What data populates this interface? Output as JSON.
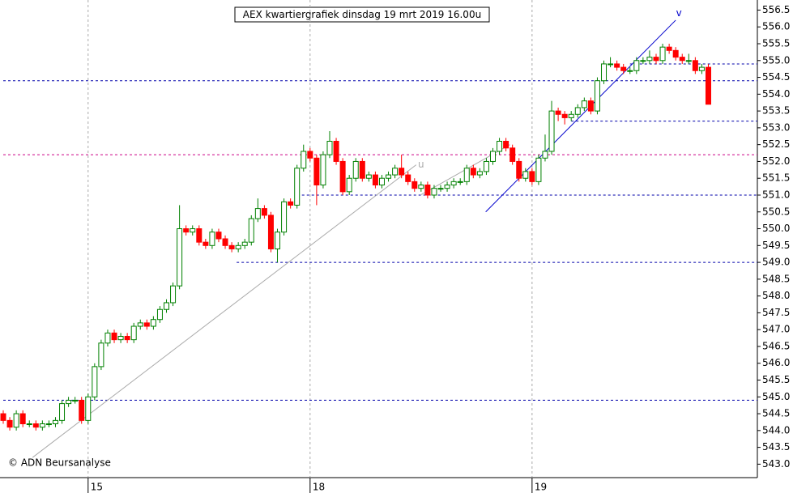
{
  "chart_data": {
    "type": "candlestick",
    "title": "AEX kwartiergrafiek dinsdag 19 mrt 2019 16.00u",
    "footer": "© ADN Beursanalyse",
    "categories": [
      null,
      null,
      null,
      null,
      null,
      null,
      null,
      null,
      null,
      null,
      null,
      null,
      null,
      "15",
      null,
      null,
      null,
      null,
      null,
      null,
      null,
      null,
      null,
      null,
      null,
      null,
      null,
      null,
      null,
      null,
      null,
      null,
      null,
      null,
      null,
      null,
      null,
      null,
      null,
      null,
      null,
      null,
      null,
      null,
      null,
      null,
      null,
      "18",
      null,
      null,
      null,
      null,
      null,
      null,
      null,
      null,
      null,
      null,
      null,
      null,
      null,
      null,
      null,
      null,
      null,
      null,
      null,
      null,
      null,
      null,
      null,
      null,
      null,
      null,
      null,
      null,
      null,
      null,
      null,
      null,
      null,
      "19",
      null,
      null,
      null,
      null,
      null,
      null,
      null,
      null,
      null,
      null,
      null,
      null,
      null,
      null,
      null,
      null,
      null,
      null,
      null,
      null,
      null,
      null,
      null,
      null,
      null,
      null,
      null
    ],
    "open": [
      544.5,
      544.3,
      544.1,
      544.5,
      544.2,
      544.2,
      544.1,
      544.2,
      544.2,
      544.3,
      544.8,
      544.9,
      544.9,
      544.3,
      545.0,
      545.9,
      546.6,
      546.9,
      546.7,
      546.8,
      546.7,
      547.1,
      547.2,
      547.1,
      547.3,
      547.6,
      547.8,
      548.3,
      550.0,
      549.9,
      550.0,
      549.6,
      549.5,
      549.9,
      549.7,
      549.5,
      549.4,
      549.5,
      549.6,
      550.3,
      550.6,
      550.4,
      549.4,
      549.9,
      550.8,
      550.7,
      551.8,
      552.3,
      552.1,
      551.3,
      552.2,
      552.6,
      552.0,
      551.1,
      551.5,
      552.0,
      551.5,
      551.6,
      551.3,
      551.5,
      551.6,
      551.8,
      551.6,
      551.4,
      551.2,
      551.3,
      551.0,
      551.2,
      551.2,
      551.3,
      551.4,
      551.4,
      551.8,
      551.6,
      551.7,
      552.0,
      552.3,
      552.6,
      552.4,
      552.0,
      551.5,
      551.7,
      551.4,
      552.1,
      552.3,
      553.5,
      553.4,
      553.3,
      553.4,
      553.6,
      553.8,
      553.5,
      554.4,
      554.9,
      554.9,
      554.8,
      554.7,
      554.7,
      555.0,
      555.0,
      555.1,
      555.0,
      555.4,
      555.3,
      555.1,
      555.0,
      555.0,
      554.7,
      554.8
    ],
    "high": [
      544.6,
      544.4,
      544.6,
      544.6,
      544.3,
      544.3,
      544.3,
      544.3,
      544.4,
      544.9,
      545.0,
      545.0,
      545.0,
      545.1,
      546.0,
      546.7,
      547.0,
      547.0,
      546.9,
      546.9,
      547.2,
      547.3,
      547.3,
      547.4,
      547.7,
      547.9,
      548.4,
      550.7,
      550.1,
      550.1,
      550.1,
      549.7,
      550.0,
      550.0,
      549.8,
      549.6,
      549.6,
      549.7,
      550.4,
      550.9,
      550.7,
      550.5,
      550.0,
      550.9,
      550.9,
      551.9,
      552.5,
      552.4,
      552.2,
      552.3,
      552.9,
      552.7,
      552.1,
      551.6,
      552.1,
      552.1,
      551.7,
      551.7,
      551.6,
      551.7,
      551.9,
      552.2,
      551.7,
      551.5,
      551.4,
      551.4,
      551.3,
      551.3,
      551.4,
      551.5,
      551.5,
      551.9,
      551.9,
      551.8,
      552.1,
      552.4,
      552.7,
      552.7,
      552.5,
      552.1,
      551.8,
      551.8,
      552.2,
      552.8,
      553.8,
      553.6,
      553.5,
      553.5,
      553.7,
      553.9,
      553.9,
      554.5,
      555.0,
      555.1,
      555.0,
      554.9,
      554.8,
      555.1,
      555.1,
      555.3,
      555.2,
      555.5,
      555.5,
      555.4,
      555.2,
      555.2,
      555.1,
      554.9,
      554.9
    ],
    "low": [
      544.2,
      544.0,
      544.0,
      544.1,
      544.1,
      544.0,
      544.0,
      544.1,
      544.1,
      544.2,
      544.7,
      544.8,
      544.2,
      544.2,
      544.9,
      545.8,
      546.5,
      546.6,
      546.6,
      546.6,
      546.6,
      547.0,
      547.0,
      547.0,
      547.2,
      547.5,
      547.7,
      548.2,
      549.8,
      549.8,
      549.5,
      549.4,
      549.4,
      549.6,
      549.4,
      549.3,
      549.3,
      549.4,
      549.5,
      550.2,
      550.3,
      549.3,
      549.0,
      549.8,
      550.6,
      550.6,
      551.7,
      552.0,
      550.7,
      551.2,
      552.1,
      551.9,
      551.0,
      551.0,
      551.4,
      551.4,
      551.4,
      551.2,
      551.2,
      551.4,
      551.5,
      551.5,
      551.3,
      551.1,
      551.1,
      550.9,
      550.9,
      551.1,
      551.1,
      551.2,
      551.3,
      551.3,
      551.5,
      551.5,
      551.6,
      551.9,
      552.2,
      552.3,
      551.9,
      551.4,
      551.4,
      551.3,
      551.3,
      552.0,
      552.2,
      553.2,
      553.1,
      553.2,
      553.3,
      553.5,
      553.4,
      553.4,
      554.3,
      554.8,
      554.7,
      554.6,
      554.6,
      554.6,
      554.9,
      554.9,
      554.9,
      554.9,
      555.2,
      555.0,
      554.9,
      554.9,
      554.6,
      554.6,
      553.7
    ],
    "close": [
      544.3,
      544.1,
      544.5,
      544.2,
      544.2,
      544.1,
      544.2,
      544.2,
      544.3,
      544.8,
      544.9,
      544.9,
      544.3,
      545.0,
      545.9,
      546.6,
      546.9,
      546.7,
      546.8,
      546.7,
      547.1,
      547.2,
      547.1,
      547.3,
      547.6,
      547.8,
      548.3,
      550.0,
      549.9,
      550.0,
      549.6,
      549.5,
      549.9,
      549.7,
      549.5,
      549.4,
      549.5,
      549.6,
      550.3,
      550.6,
      550.4,
      549.4,
      549.9,
      550.8,
      550.7,
      551.8,
      552.3,
      552.1,
      551.3,
      552.2,
      552.6,
      552.0,
      551.1,
      551.5,
      552.0,
      551.5,
      551.6,
      551.3,
      551.5,
      551.6,
      551.8,
      551.6,
      551.4,
      551.2,
      551.3,
      551.0,
      551.2,
      551.2,
      551.3,
      551.4,
      551.4,
      551.8,
      551.6,
      551.7,
      552.0,
      552.3,
      552.6,
      552.4,
      552.0,
      551.5,
      551.7,
      551.4,
      552.1,
      552.3,
      553.5,
      553.4,
      553.3,
      553.4,
      553.6,
      553.8,
      553.5,
      554.4,
      554.9,
      554.9,
      554.8,
      554.7,
      554.7,
      555.0,
      555.0,
      555.1,
      555.0,
      555.4,
      555.3,
      555.1,
      555.0,
      555.0,
      554.7,
      554.8,
      553.7
    ],
    "up_color": "#008000",
    "down_color": "#ff0000",
    "ylim": [
      542.6,
      556.8
    ],
    "yticks": [
      {
        "value": 543,
        "label": "543.0"
      },
      543.5,
      {
        "value": 544,
        "label": "544.0"
      },
      544.5,
      {
        "value": 545,
        "label": "545.0"
      },
      545.5,
      {
        "value": 546,
        "label": "546.0"
      },
      546.5,
      {
        "value": 547,
        "label": "547.0"
      },
      547.5,
      {
        "value": 548,
        "label": "548.0"
      },
      548.5,
      {
        "value": 549,
        "label": "549.0"
      },
      549.5,
      {
        "value": 550,
        "label": "550.0"
      },
      550.5,
      {
        "value": 551,
        "label": "551.0"
      },
      551.5,
      {
        "value": 552,
        "label": "552.0"
      },
      552.5,
      {
        "value": 553,
        "label": "553.0"
      },
      553.5,
      {
        "value": 554,
        "label": "554.0"
      },
      554.5,
      {
        "value": 555,
        "label": "555.0"
      },
      555.5,
      {
        "value": 556,
        "label": "556.0"
      },
      556.5
    ],
    "hlines": [
      {
        "value": 554.4,
        "from": 0,
        "color": "#0000aa"
      },
      {
        "value": 554.9,
        "from": 96,
        "color": "#0000aa"
      },
      {
        "value": 553.2,
        "from": 87,
        "color": "#0000aa"
      },
      {
        "value": 552.2,
        "from": 0,
        "color": "#cc0088"
      },
      {
        "value": 551.0,
        "from": 45.75,
        "color": "#0000aa"
      },
      {
        "value": 549.0,
        "from": 35.75,
        "color": "#0000aa"
      },
      {
        "value": 544.9,
        "from": 0,
        "color": "#0000aa"
      }
    ],
    "trendlines": [
      {
        "from": [
          4.5,
          543.2
        ],
        "to": [
          63.25,
          551.9
        ],
        "color": "#aaaaaa"
      },
      {
        "from": [
          63.9,
          551.0
        ],
        "to": [
          77.6,
          552.5
        ],
        "color": "#aaaaaa"
      },
      {
        "from": [
          73.9,
          550.5
        ],
        "to": [
          103,
          556.2
        ],
        "color": "#0000cc"
      }
    ],
    "annotations": [
      {
        "text": "u",
        "x": 64,
        "y": 551.9,
        "color": "#aaaaaa"
      },
      {
        "text": "v",
        "x": 103.5,
        "y": 556.4,
        "color": "#0000cc"
      }
    ]
  }
}
